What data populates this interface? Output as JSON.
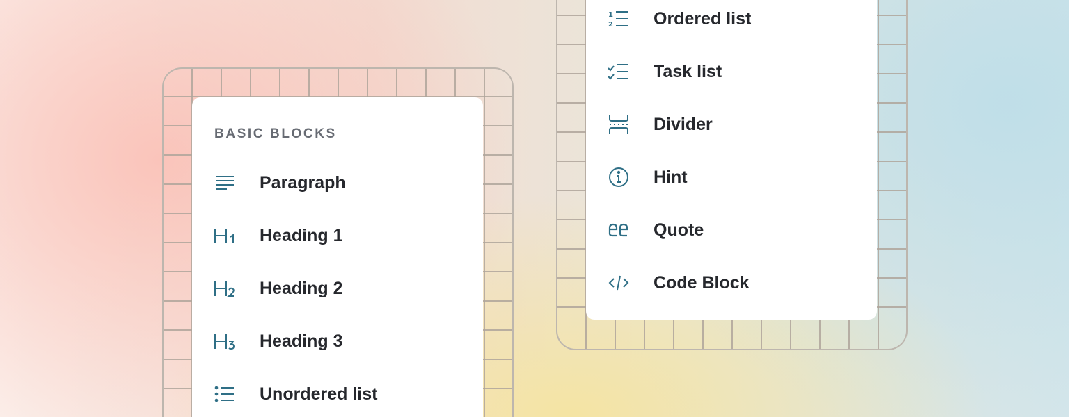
{
  "colors": {
    "icon": "#2f6f86",
    "text": "#26282d",
    "header": "#676b73"
  },
  "left_menu": {
    "header": "BASIC BLOCKS",
    "items": [
      {
        "label": "Paragraph",
        "icon": "paragraph-icon"
      },
      {
        "label": "Heading 1",
        "icon": "heading-1-icon"
      },
      {
        "label": "Heading 2",
        "icon": "heading-2-icon"
      },
      {
        "label": "Heading 3",
        "icon": "heading-3-icon"
      },
      {
        "label": "Unordered list",
        "icon": "unordered-list-icon"
      }
    ]
  },
  "right_menu": {
    "items": [
      {
        "label": "Ordered list",
        "icon": "ordered-list-icon"
      },
      {
        "label": "Task list",
        "icon": "task-list-icon"
      },
      {
        "label": "Divider",
        "icon": "divider-icon"
      },
      {
        "label": "Hint",
        "icon": "info-icon"
      },
      {
        "label": "Quote",
        "icon": "quote-icon"
      },
      {
        "label": "Code Block",
        "icon": "code-icon"
      }
    ]
  }
}
